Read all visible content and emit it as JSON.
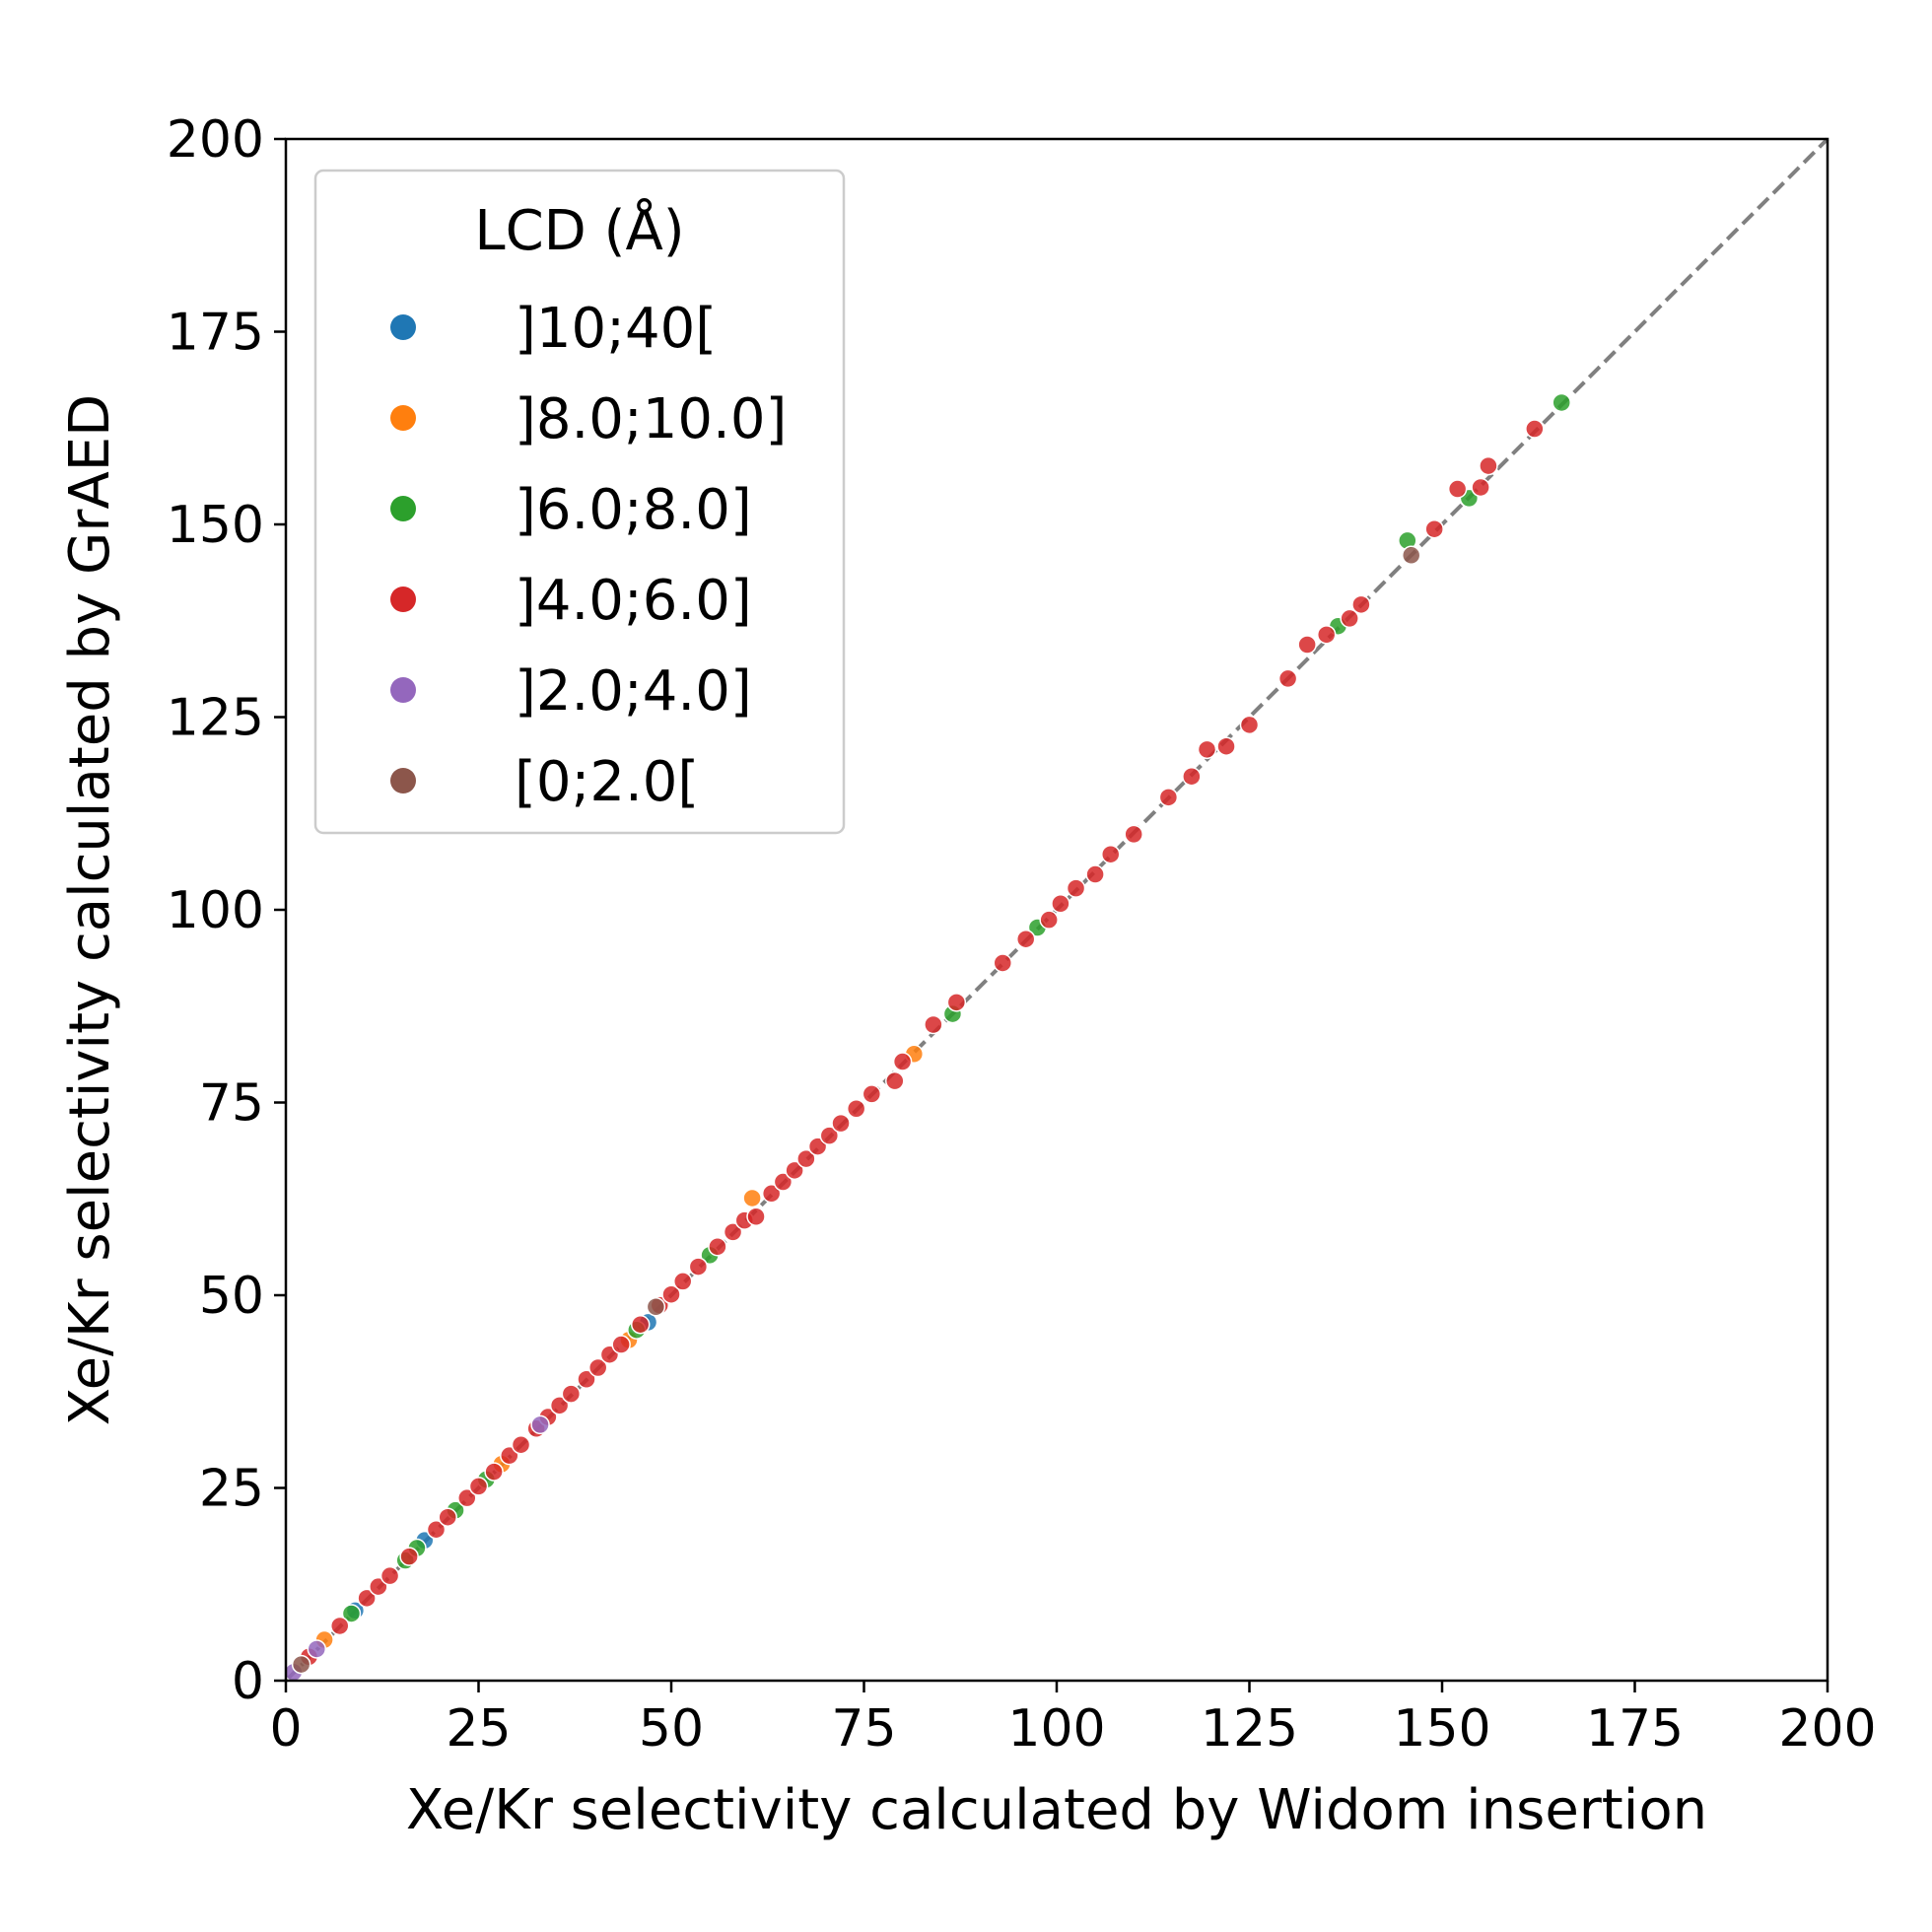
{
  "chart_data": {
    "type": "scatter",
    "xlabel": "Xe/Kr selectivity calculated by Widom insertion",
    "ylabel": "Xe/Kr selectivity calculated by GrAED",
    "xlim": [
      0,
      200
    ],
    "ylim": [
      0,
      200
    ],
    "xticks": [
      "0",
      "25",
      "50",
      "75",
      "100",
      "125",
      "150",
      "175",
      "200"
    ],
    "yticks": [
      "0",
      "25",
      "50",
      "75",
      "100",
      "125",
      "150",
      "175",
      "200"
    ],
    "grid": false,
    "reference_line": {
      "style": "dashed",
      "color": "#808080",
      "from": [
        0,
        0
      ],
      "to": [
        200,
        200
      ]
    },
    "legend": {
      "title": "LCD (Å)",
      "placement": "top-left"
    },
    "series": [
      {
        "name": "]10;40[",
        "color": "#1f77b4",
        "points": [
          [
            47,
            46.5
          ],
          [
            18,
            18.2
          ],
          [
            9,
            9.1
          ]
        ]
      },
      {
        "name": "]8.0;10.0]",
        "color": "#ff7f0e",
        "points": [
          [
            5,
            5.3
          ],
          [
            60.5,
            62.6
          ],
          [
            81.5,
            81.3
          ],
          [
            44.5,
            44.2
          ],
          [
            28,
            28.1
          ]
        ]
      },
      {
        "name": "]6.0;8.0]",
        "color": "#2ca02c",
        "points": [
          [
            8.5,
            8.7
          ],
          [
            15.5,
            15.6
          ],
          [
            17,
            17.2
          ],
          [
            22,
            22.1
          ],
          [
            26,
            26.1
          ],
          [
            45.5,
            45.5
          ],
          [
            55,
            55.2
          ],
          [
            86.5,
            86.5
          ],
          [
            97.5,
            97.7
          ],
          [
            136.5,
            136.8
          ],
          [
            145.5,
            147.9
          ],
          [
            153.5,
            153.4
          ],
          [
            165.5,
            165.8
          ]
        ]
      },
      {
        "name": "]4.0;6.0]",
        "color": "#d62728",
        "points": [
          [
            3,
            3.1
          ],
          [
            7,
            7.1
          ],
          [
            10.5,
            10.7
          ],
          [
            12,
            12.2
          ],
          [
            13.5,
            13.6
          ],
          [
            16,
            16.1
          ],
          [
            19.5,
            19.6
          ],
          [
            21,
            21.2
          ],
          [
            23.5,
            23.7
          ],
          [
            25,
            25.2
          ],
          [
            27,
            27.1
          ],
          [
            29,
            29.2
          ],
          [
            30.5,
            30.6
          ],
          [
            32.5,
            32.7
          ],
          [
            34,
            34.2
          ],
          [
            35.5,
            35.7
          ],
          [
            37,
            37.2
          ],
          [
            39,
            39.1
          ],
          [
            40.5,
            40.6
          ],
          [
            42,
            42.3
          ],
          [
            43.5,
            43.6
          ],
          [
            46,
            46.2
          ],
          [
            48.5,
            48.7
          ],
          [
            50,
            50.1
          ],
          [
            51.5,
            51.8
          ],
          [
            53.5,
            53.7
          ],
          [
            56,
            56.3
          ],
          [
            58,
            58.2
          ],
          [
            59.5,
            59.7
          ],
          [
            61,
            60.2
          ],
          [
            63,
            63.2
          ],
          [
            64.5,
            64.7
          ],
          [
            66,
            66.2
          ],
          [
            67.5,
            67.7
          ],
          [
            69,
            69.3
          ],
          [
            70.5,
            70.7
          ],
          [
            72,
            72.3
          ],
          [
            74,
            74.2
          ],
          [
            76,
            76.1
          ],
          [
            79,
            77.8
          ],
          [
            80,
            80.3
          ],
          [
            84,
            85.1
          ],
          [
            87,
            88
          ],
          [
            93,
            93.1
          ],
          [
            96,
            96.2
          ],
          [
            99,
            98.7
          ],
          [
            100.5,
            100.8
          ],
          [
            102.5,
            102.8
          ],
          [
            105,
            104.6
          ],
          [
            107,
            107.2
          ],
          [
            110,
            109.8
          ],
          [
            114.5,
            114.6
          ],
          [
            117.5,
            117.3
          ],
          [
            119.5,
            120.8
          ],
          [
            122,
            121.2
          ],
          [
            125,
            124
          ],
          [
            130,
            130
          ],
          [
            132.5,
            134.4
          ],
          [
            135,
            135.7
          ],
          [
            138,
            137.8
          ],
          [
            139.5,
            139.6
          ],
          [
            149,
            149.4
          ],
          [
            152,
            154.6
          ],
          [
            155,
            154.8
          ],
          [
            156,
            157.6
          ],
          [
            162,
            162.4
          ]
        ]
      },
      {
        "name": "]2.0;4.0]",
        "color": "#9467bd",
        "points": [
          [
            1,
            1.1
          ],
          [
            4,
            4.1
          ],
          [
            33,
            33.2
          ]
        ]
      },
      {
        "name": "[0;2.0[",
        "color": "#8c564b",
        "points": [
          [
            2,
            2.1
          ],
          [
            48,
            48.5
          ],
          [
            146,
            146
          ]
        ]
      }
    ]
  }
}
